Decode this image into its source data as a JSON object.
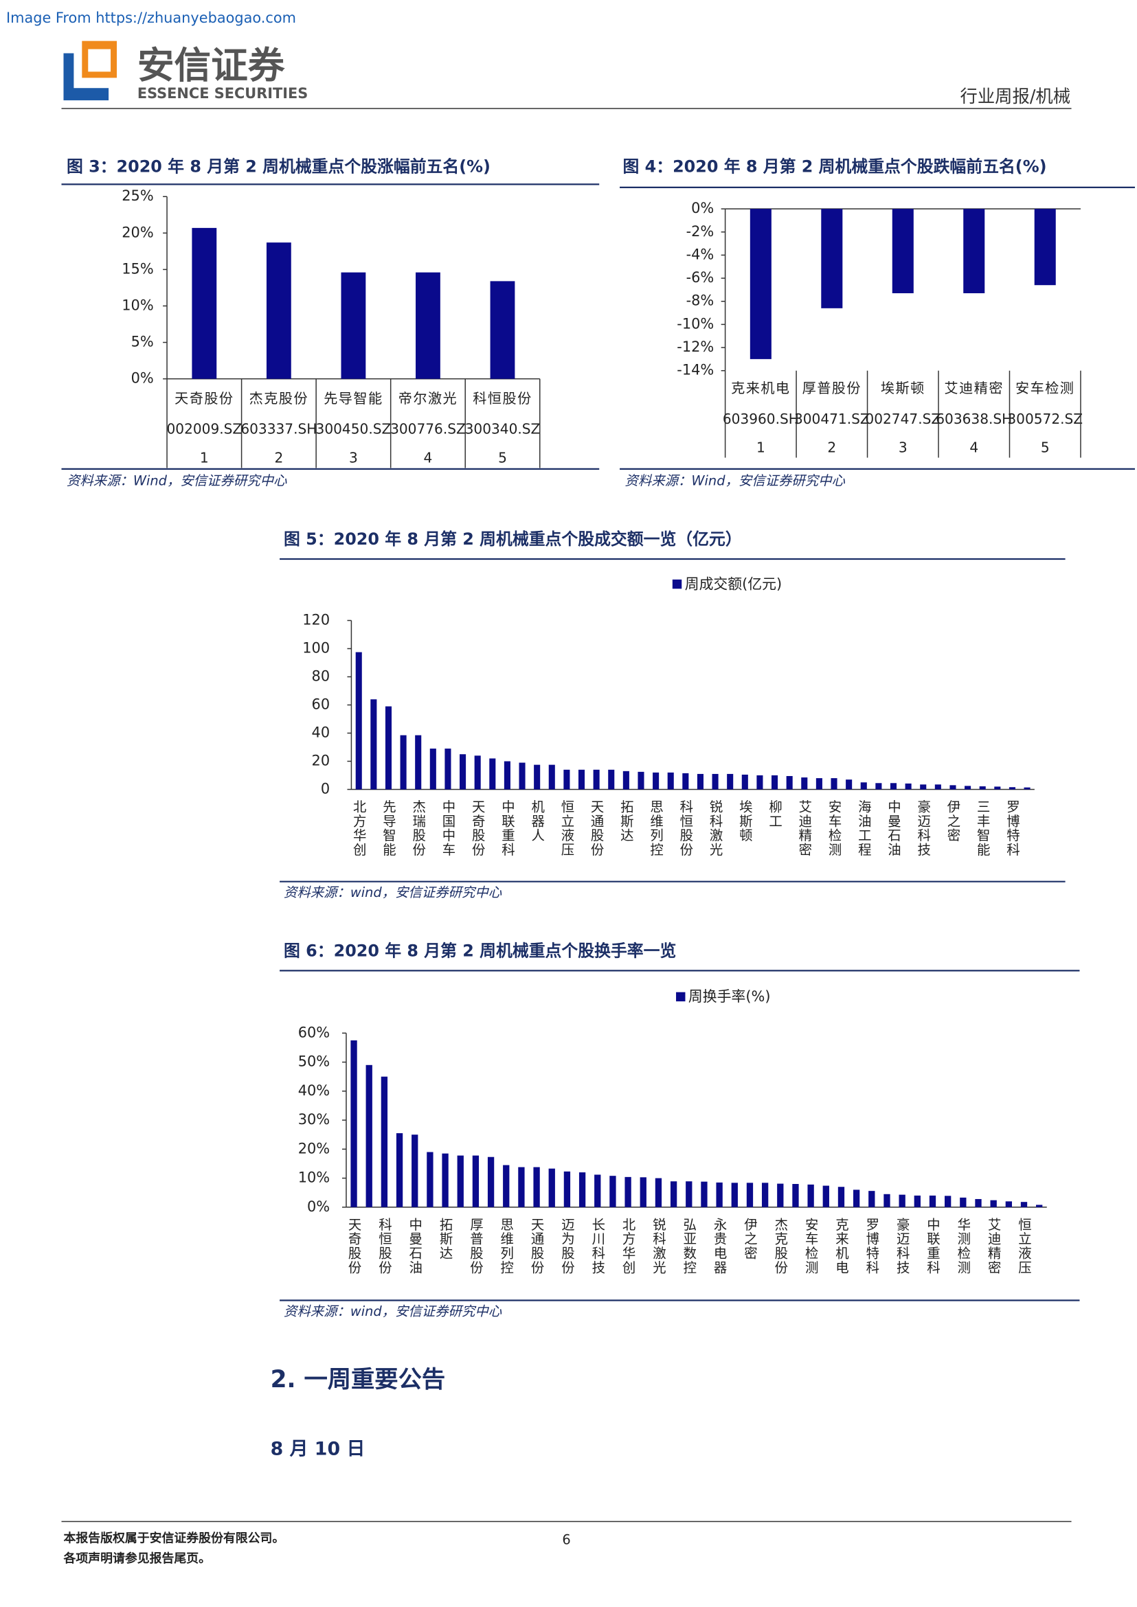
{
  "header": {
    "watermark": "Image From https://zhuanyebaogao.com",
    "logo_cn": "安信证券",
    "logo_en": "ESSENCE SECURITIES",
    "section": "行业周报/机械"
  },
  "chart_data": [
    {
      "type": "bar",
      "title": "图 3：2020 年 8 月第 2 周机械重点个股涨幅前五名(%)",
      "categories": [
        "天奇股份",
        "杰克股份",
        "先导智能",
        "帝尔激光",
        "科恒股份"
      ],
      "category_codes": [
        "002009.SZ",
        "603337.SH",
        "300450.SZ",
        "300776.SZ",
        "300340.SZ"
      ],
      "category_ranks": [
        "1",
        "2",
        "3",
        "4",
        "5"
      ],
      "values": [
        20.7,
        18.7,
        14.6,
        14.6,
        13.4
      ],
      "color": "#0a0a8c",
      "ylim": [
        0,
        25
      ],
      "yticks": [
        {
          "value": 0,
          "label": "0%"
        },
        {
          "value": 5,
          "label": "5%"
        },
        {
          "value": 10,
          "label": "10%"
        },
        {
          "value": 15,
          "label": "15%"
        },
        {
          "value": 20,
          "label": "20%"
        },
        {
          "value": 25,
          "label": "25%"
        }
      ],
      "source": "资料来源：Wind，安信证券研究中心"
    },
    {
      "type": "bar",
      "title": "图 4：2020 年 8 月第 2 周机械重点个股跌幅前五名(%)",
      "categories": [
        "克来机电",
        "厚普股份",
        "埃斯顿",
        "艾迪精密",
        "安车检测"
      ],
      "category_codes": [
        "603960.SH",
        "300471.SZ",
        "002747.SZ",
        "603638.SH",
        "300572.SZ"
      ],
      "category_ranks": [
        "1",
        "2",
        "3",
        "4",
        "5"
      ],
      "values": [
        -13.0,
        -8.6,
        -7.3,
        -7.3,
        -6.6
      ],
      "color": "#0a0a8c",
      "ylim": [
        -14,
        0
      ],
      "yticks": [
        {
          "value": 0,
          "label": "0%"
        },
        {
          "value": -2,
          "label": "-2%"
        },
        {
          "value": -4,
          "label": "-4%"
        },
        {
          "value": -6,
          "label": "-6%"
        },
        {
          "value": -8,
          "label": "-8%"
        },
        {
          "value": -10,
          "label": "-10%"
        },
        {
          "value": -12,
          "label": "-12%"
        },
        {
          "value": -14,
          "label": "-14%"
        }
      ],
      "source": "资料来源：Wind，安信证券研究中心"
    },
    {
      "type": "bar",
      "title": "图 5：2020 年 8 月第 2 周机械重点个股成交额一览（亿元）",
      "categories": [
        "北方华创",
        null,
        "先导智能",
        null,
        "杰瑞股份",
        null,
        "中国中车",
        null,
        "天奇股份",
        null,
        "中联重科",
        null,
        "机器人",
        null,
        "恒立液压",
        null,
        "天通股份",
        null,
        "拓斯达",
        null,
        "思维列控",
        null,
        "科恒股份",
        null,
        "锐科激光",
        null,
        "埃斯顿",
        null,
        "柳工",
        null,
        "艾迪精密",
        null,
        "安车检测",
        null,
        "海油工程",
        null,
        "中曼石油",
        null,
        "豪迈科技",
        null,
        "伊之密",
        null,
        "三丰智能",
        null,
        "罗博特科",
        null
      ],
      "series": [
        {
          "name": "周成交额(亿元)",
          "color": "#0a0a8c",
          "values": [
            97.5,
            64,
            59,
            38.5,
            38.5,
            29,
            29,
            25,
            24,
            22,
            20,
            19,
            17.5,
            17.5,
            14,
            14,
            14,
            14,
            13,
            12.5,
            12,
            12,
            11.5,
            11,
            11,
            11,
            10.5,
            10,
            10,
            9.5,
            8.5,
            8,
            8,
            7,
            5,
            4.5,
            4.5,
            4.2,
            3.5,
            3.5,
            3,
            2.5,
            2.2,
            2,
            1.6,
            1.4
          ]
        }
      ],
      "ylim": [
        0,
        120
      ],
      "yticks": [
        0,
        20,
        40,
        60,
        80,
        100,
        120
      ],
      "source": "资料来源：wind，安信证券研究中心"
    },
    {
      "type": "bar",
      "title": "图 6：2020 年 8 月第 2 周机械重点个股换手率一览",
      "categories": [
        "天奇股份",
        null,
        "科恒股份",
        null,
        "中曼石油",
        null,
        "拓斯达",
        null,
        "厚普股份",
        null,
        "思维列控",
        null,
        "天通股份",
        null,
        "迈为股份",
        null,
        "长川科技",
        null,
        "北方华创",
        null,
        "锐科激光",
        null,
        "弘亚数控",
        null,
        "永贵电器",
        null,
        "伊之密",
        null,
        "杰克股份",
        null,
        "安车检测",
        null,
        "克来机电",
        null,
        "罗博特科",
        null,
        "豪迈科技",
        null,
        "中联重科",
        null,
        "华测检测",
        null,
        "艾迪精密",
        null,
        "恒立液压",
        null
      ],
      "series": [
        {
          "name": "周换手率(%)",
          "color": "#0a0a8c",
          "values": [
            57.5,
            49,
            45,
            25.5,
            25,
            19,
            18.5,
            17.8,
            17.8,
            17.3,
            14.5,
            13.8,
            13.8,
            13.3,
            12.3,
            12,
            11.2,
            10.8,
            10.4,
            10.3,
            10,
            8.9,
            8.9,
            8.8,
            8.5,
            8.4,
            8.4,
            8.4,
            8.1,
            8,
            7.8,
            7.4,
            7,
            6,
            5.6,
            4.5,
            4.3,
            4,
            4,
            3.9,
            3.3,
            2.8,
            2.4,
            2,
            1.8,
            0.8
          ]
        }
      ],
      "ylim": [
        0,
        60
      ],
      "yticks": [
        {
          "value": 0,
          "label": "0%"
        },
        {
          "value": 10,
          "label": "10%"
        },
        {
          "value": 20,
          "label": "20%"
        },
        {
          "value": 30,
          "label": "30%"
        },
        {
          "value": 40,
          "label": "40%"
        },
        {
          "value": 50,
          "label": "50%"
        },
        {
          "value": 60,
          "label": "60%"
        }
      ],
      "source": "资料来源：wind，安信证券研究中心"
    }
  ],
  "body": {
    "heading": "2. 一周重要公告",
    "date": "8 月 10 日"
  },
  "footer": {
    "copyright": "本报告版权属于安信证券股份有限公司。",
    "notice": "各项声明请参见报告尾页。",
    "page": "6"
  }
}
